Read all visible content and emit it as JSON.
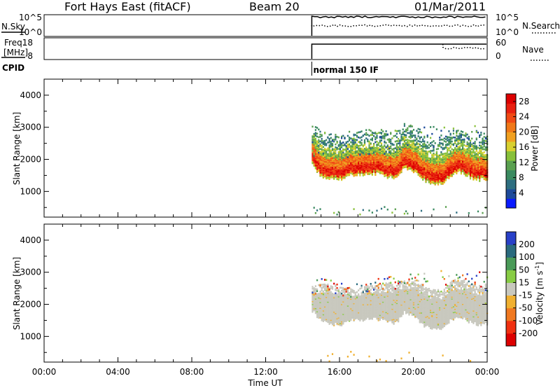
{
  "header": {
    "station": "Fort Hays East (fitACF)",
    "beam": "Beam 20",
    "date": "01/Mar/2011"
  },
  "status_panels": {
    "nsky": {
      "label": "N.Sky",
      "ticks": [
        "10^5",
        "10^0"
      ]
    },
    "nsearch": {
      "label": "N.Search",
      "ticks": [
        "10^5",
        "10^0"
      ]
    },
    "freq": {
      "label_lines": [
        "Freq.",
        "[MHz]"
      ],
      "ticks": [
        "18",
        "8"
      ]
    },
    "nave": {
      "label": "Nave",
      "ticks": [
        "60",
        "0"
      ]
    },
    "cpid": {
      "label": "CPID",
      "value": "normal 150 IF",
      "start_hour": 14.5
    }
  },
  "colors": {
    "scale": [
      "#0a1aff",
      "#1e4a9a",
      "#2e6e80",
      "#3a8a60",
      "#5aa050",
      "#88c03a",
      "#d8d030",
      "#f0a020",
      "#f07818",
      "#f04a14",
      "#e82010",
      "#dd0000"
    ],
    "velocity": [
      "#2840c8",
      "#2a6a7e",
      "#4a9a58",
      "#88cc44",
      "#c8c8be",
      "#f0b030",
      "#f07820",
      "#f03010",
      "#dd0000"
    ]
  },
  "chart_data": [
    {
      "type": "heatmap",
      "title": "Power",
      "xlabel": "Time UT",
      "ylabel": "Slant Range [km]",
      "xlim": [
        0,
        24
      ],
      "ylim": [
        200,
        4500
      ],
      "xticks": [
        "00:00",
        "04:00",
        "08:00",
        "12:00",
        "16:00",
        "20:00",
        "00:00"
      ],
      "yticks": [
        1000,
        2000,
        3000,
        4000
      ],
      "colorbar": {
        "label": "Power [dB]",
        "ticks": [
          "4",
          "8",
          "12",
          "16",
          "20",
          "24",
          "28"
        ],
        "range": [
          0,
          30
        ]
      },
      "data_start_hour": 14.5,
      "lower_edge_km": [
        [
          14.5,
          1850
        ],
        [
          15,
          1500
        ],
        [
          15.5,
          1450
        ],
        [
          16,
          1400
        ],
        [
          16.5,
          1550
        ],
        [
          17,
          1550
        ],
        [
          17.5,
          1600
        ],
        [
          18,
          1600
        ],
        [
          18.5,
          1500
        ],
        [
          19,
          1450
        ],
        [
          19.5,
          1800
        ],
        [
          20,
          1650
        ],
        [
          20.5,
          1400
        ],
        [
          21,
          1300
        ],
        [
          21.5,
          1280
        ],
        [
          22,
          1550
        ],
        [
          22.5,
          1650
        ],
        [
          23,
          1500
        ],
        [
          23.5,
          1400
        ],
        [
          24,
          1450
        ]
      ],
      "upper_echo_km": [
        [
          14.5,
          2800
        ],
        [
          15.5,
          2900
        ],
        [
          16.5,
          2700
        ],
        [
          17.5,
          2800
        ],
        [
          18.5,
          2900
        ],
        [
          19.5,
          2950
        ],
        [
          20.5,
          3050
        ],
        [
          21.5,
          3150
        ],
        [
          22.5,
          2950
        ],
        [
          23.5,
          3100
        ],
        [
          24,
          2900
        ]
      ]
    },
    {
      "type": "heatmap",
      "title": "Velocity",
      "xlabel": "Time UT",
      "ylabel": "Slant Range [km]",
      "xlim": [
        0,
        24
      ],
      "ylim": [
        200,
        4500
      ],
      "xticks": [
        "00:00",
        "04:00",
        "08:00",
        "12:00",
        "16:00",
        "20:00",
        "00:00"
      ],
      "yticks": [
        1000,
        2000,
        3000,
        4000
      ],
      "colorbar": {
        "label": "Velocity [m s-1]",
        "ticks": [
          "200",
          "100",
          "50",
          "15",
          "-15",
          "-50",
          "-100",
          "-200"
        ],
        "range": [
          -250,
          250
        ]
      },
      "data_start_hour": 14.5
    }
  ]
}
